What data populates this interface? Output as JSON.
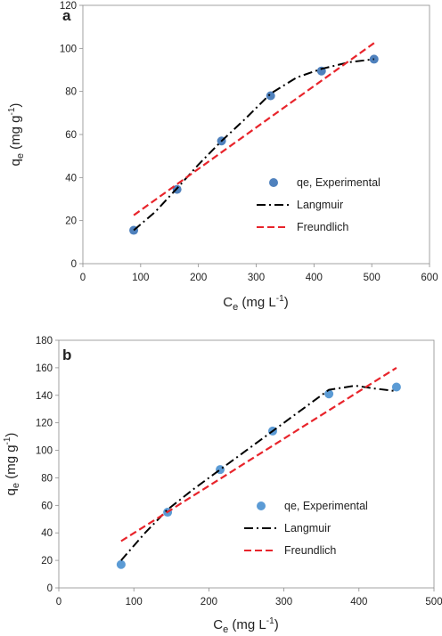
{
  "chart_data": [
    {
      "panel": "a",
      "type": "scatter",
      "title": "",
      "xlabel": "C",
      "xlabel_sub": "e",
      "xlabel_unit": " (mg L",
      "xlabel_exp": "-1",
      "xlabel_close": ")",
      "ylabel": "q",
      "ylabel_sub": "e",
      "ylabel_unit": " (mg g",
      "ylabel_exp": "-1",
      "ylabel_close": ")",
      "xlim": [
        0,
        600
      ],
      "ylim": [
        0,
        120
      ],
      "xticks": [
        "0",
        "100",
        "200",
        "300",
        "400",
        "500",
        "600"
      ],
      "yticks": [
        "0",
        "20",
        "40",
        "60",
        "80",
        "100",
        "120"
      ],
      "grid": false,
      "legend_position": "right-middle",
      "series": [
        {
          "name": "qe, Experimental",
          "kind": "points",
          "color": "#4f81bd",
          "x": [
            88,
            163,
            240,
            325,
            413,
            504
          ],
          "y": [
            15.5,
            34.5,
            57,
            78,
            89.5,
            95
          ]
        },
        {
          "name": "Langmuir",
          "kind": "dashdot",
          "color": "#000000",
          "x": [
            88,
            125,
            163,
            200,
            240,
            280,
            325,
            370,
            413,
            460,
            504
          ],
          "y": [
            15.5,
            24,
            35,
            46,
            57,
            67,
            79,
            86.5,
            90.5,
            93.5,
            95
          ]
        },
        {
          "name": "Freundlich",
          "kind": "dashed",
          "color": "#e8242b",
          "x": [
            88,
            504
          ],
          "y": [
            22.5,
            102.5
          ]
        }
      ]
    },
    {
      "panel": "b",
      "type": "scatter",
      "title": "",
      "xlabel": "C",
      "xlabel_sub": "e",
      "xlabel_unit": " (mg L",
      "xlabel_exp": "-1",
      "xlabel_close": ")",
      "ylabel": "q",
      "ylabel_sub": "e",
      "ylabel_unit": " (mg g",
      "ylabel_exp": "-1",
      "ylabel_close": ")",
      "xlim": [
        0,
        500
      ],
      "ylim": [
        0,
        180
      ],
      "xticks": [
        "0",
        "100",
        "200",
        "300",
        "400",
        "500"
      ],
      "yticks": [
        "0",
        "20",
        "40",
        "60",
        "80",
        "100",
        "120",
        "140",
        "160",
        "180"
      ],
      "grid": false,
      "legend_position": "bottom-right",
      "series": [
        {
          "name": "qe, Experimental",
          "kind": "points",
          "color": "#5b9bd5",
          "x": [
            83,
            145,
            215,
            285,
            360,
            450
          ],
          "y": [
            17,
            55,
            86,
            114,
            141,
            146
          ]
        },
        {
          "name": "Langmuir",
          "kind": "dashdot",
          "color": "#000000",
          "x": [
            83,
            115,
            145,
            180,
            215,
            250,
            285,
            320,
            360,
            395,
            420,
            450
          ],
          "y": [
            20,
            40,
            57,
            72,
            86,
            100,
            114,
            128,
            144,
            147,
            145,
            143
          ]
        },
        {
          "name": "Freundlich",
          "kind": "dashed",
          "color": "#e8242b",
          "x": [
            83,
            450
          ],
          "y": [
            34,
            160
          ]
        }
      ]
    }
  ]
}
